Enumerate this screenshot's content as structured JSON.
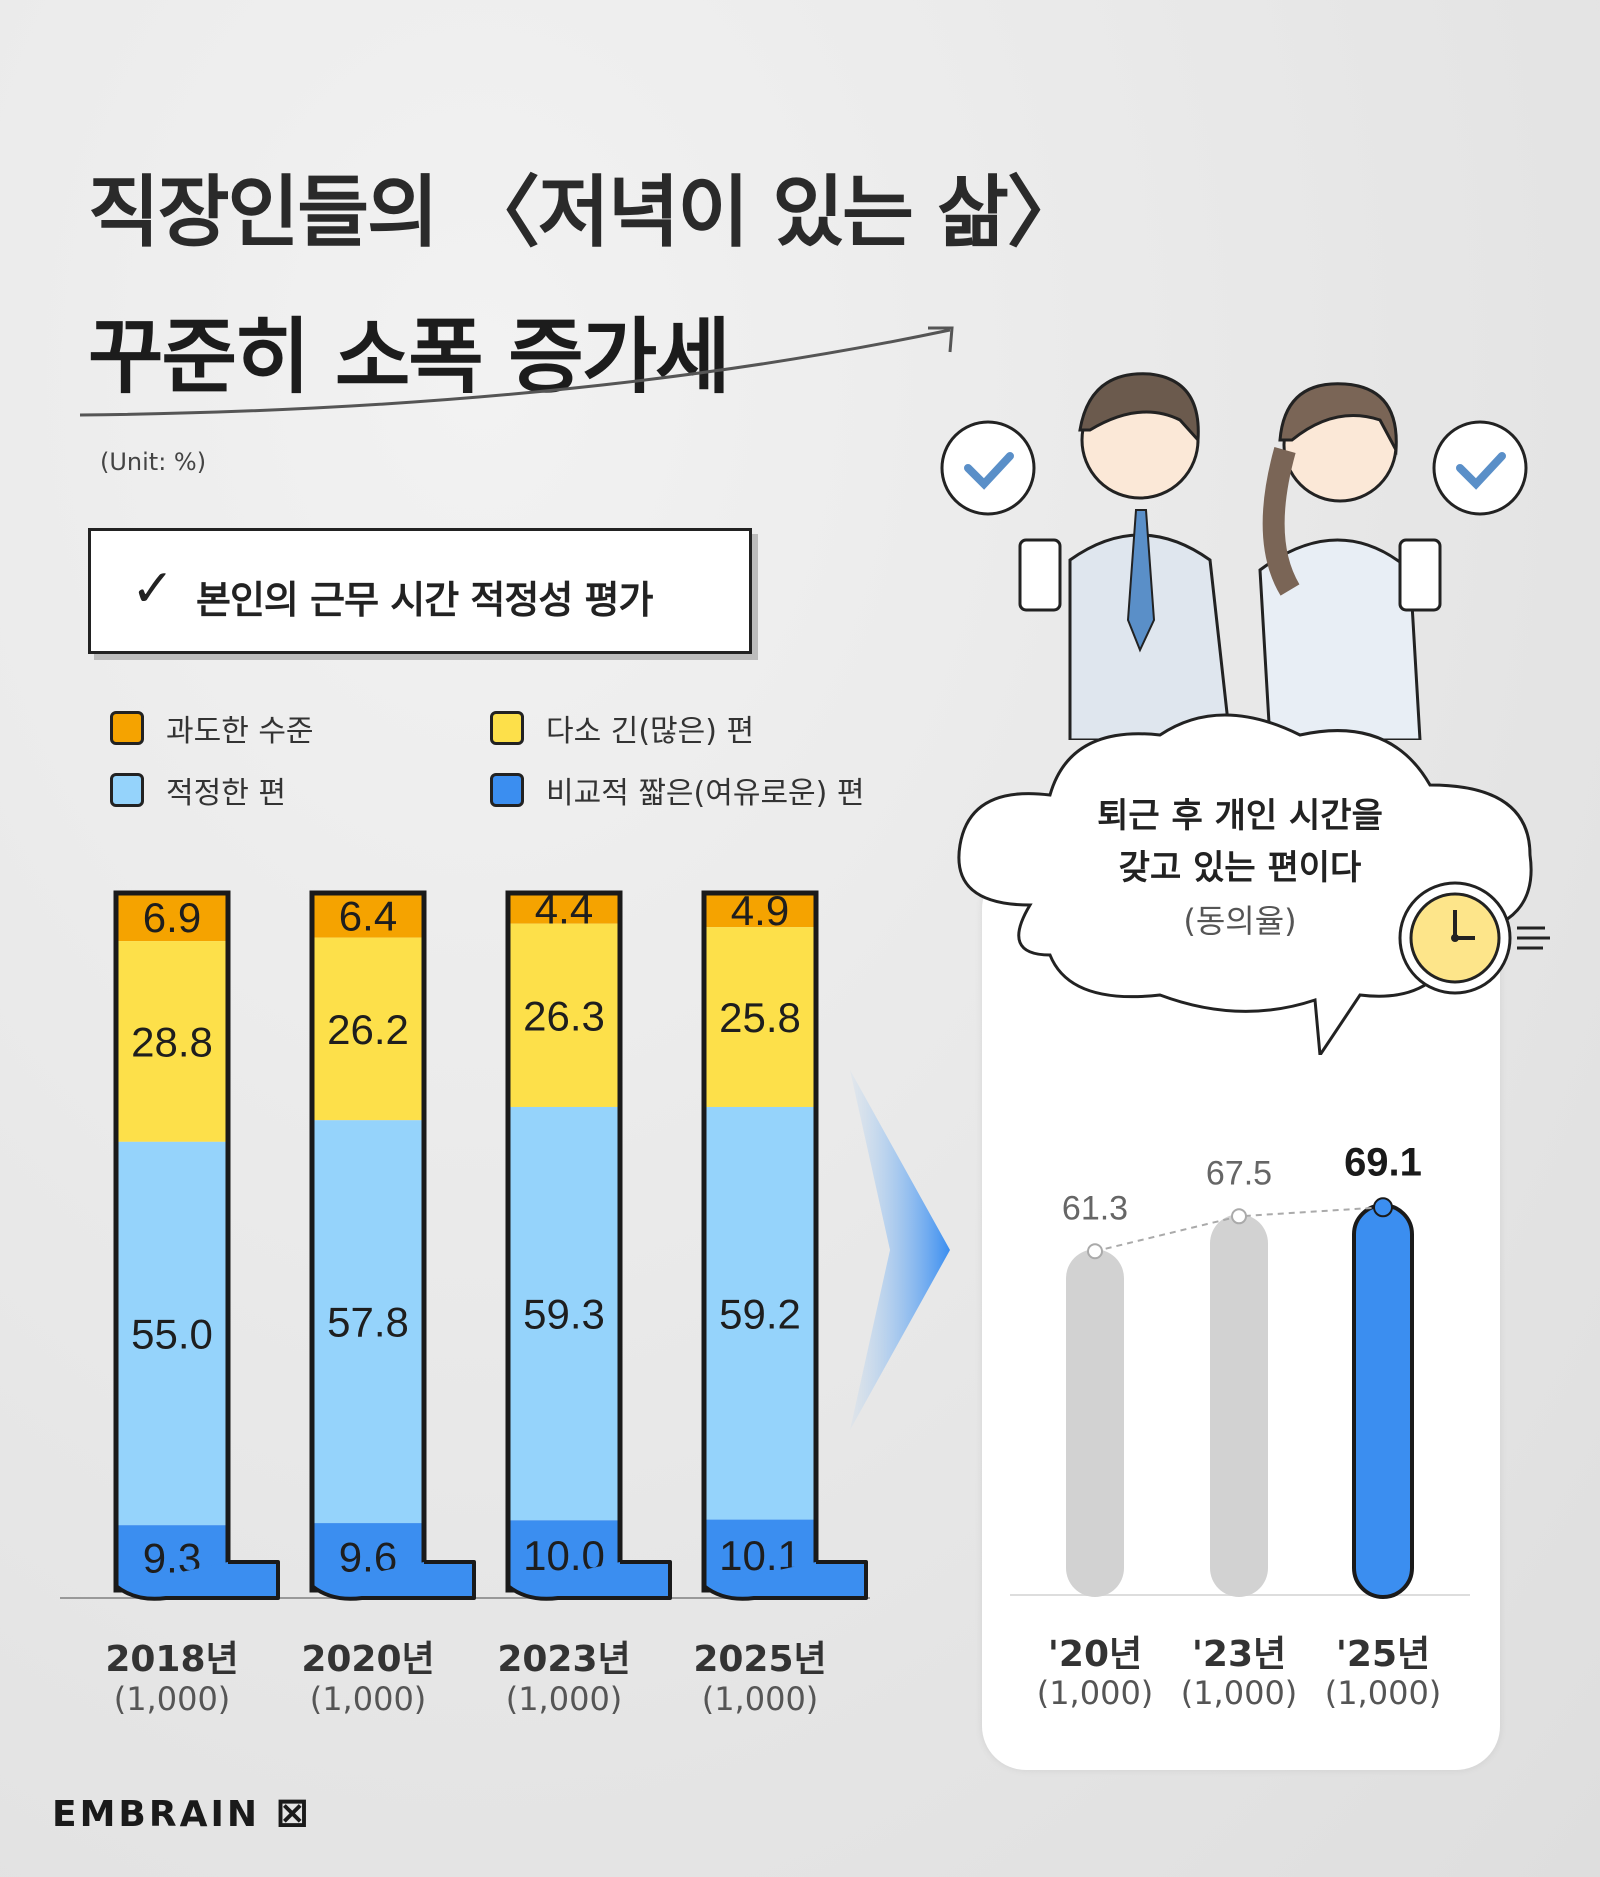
{
  "header": {
    "title_line1": "직장인들의 〈저녁이 있는 삶〉",
    "title_line2": "꾸준히 소폭 증가세",
    "unit": "(Unit: %)"
  },
  "section": {
    "label": "본인의 근무 시간 적정성 평가"
  },
  "legend": [
    {
      "label": "과도한 수준",
      "color": "#f5a300"
    },
    {
      "label": "다소 긴(많은) 편",
      "color": "#fde04a"
    },
    {
      "label": "적정한 편",
      "color": "#95d3fb"
    },
    {
      "label": "비교적 짧은(여유로운) 편",
      "color": "#3b8ef0"
    }
  ],
  "chart_data": [
    {
      "type": "bar",
      "stacked": true,
      "categories": [
        "2018년",
        "2020년",
        "2023년",
        "2025년"
      ],
      "category_sub": [
        "(1,000)",
        "(1,000)",
        "(1,000)",
        "(1,000)"
      ],
      "series": [
        {
          "name": "과도한 수준",
          "values": [
            6.9,
            6.4,
            4.4,
            4.9
          ],
          "color": "#f5a300"
        },
        {
          "name": "다소 긴(많은) 편",
          "values": [
            28.8,
            26.2,
            26.3,
            25.8
          ],
          "color": "#fde04a"
        },
        {
          "name": "적정한 편",
          "values": [
            55.0,
            57.8,
            59.3,
            59.2
          ],
          "color": "#95d3fb"
        },
        {
          "name": "비교적 짧은(여유로운) 편",
          "values": [
            9.3,
            9.6,
            10.0,
            10.1
          ],
          "color": "#3b8ef0"
        }
      ],
      "value_labels": [
        [
          "6.9",
          "6.4",
          "4.4",
          "4.9"
        ],
        [
          "28.8",
          "26.2",
          "26.3",
          "25.8"
        ],
        [
          "55.0",
          "57.8",
          "59.3",
          "59.2"
        ],
        [
          "9.3",
          "9.6",
          "10.0",
          "10.1"
        ]
      ],
      "ylim": [
        0,
        100
      ]
    },
    {
      "type": "bar",
      "title": "퇴근 후 개인 시간을 갖고 있는 편이다",
      "subtitle": "(동의율)",
      "categories": [
        "'20년",
        "'23년",
        "'25년"
      ],
      "category_sub": [
        "(1,000)",
        "(1,000)",
        "(1,000)"
      ],
      "values": [
        61.3,
        67.5,
        69.1
      ],
      "value_labels": [
        "61.3",
        "67.5",
        "69.1"
      ],
      "colors": [
        "#d2d2d2",
        "#d2d2d2",
        "#3b8ef0"
      ],
      "trend_line": true
    }
  ],
  "cloud": {
    "line1": "퇴근 후 개인 시간을",
    "line2": "갖고 있는 편이다",
    "sub": "(동의율)"
  },
  "brand": {
    "name": "EMBRAIN"
  }
}
